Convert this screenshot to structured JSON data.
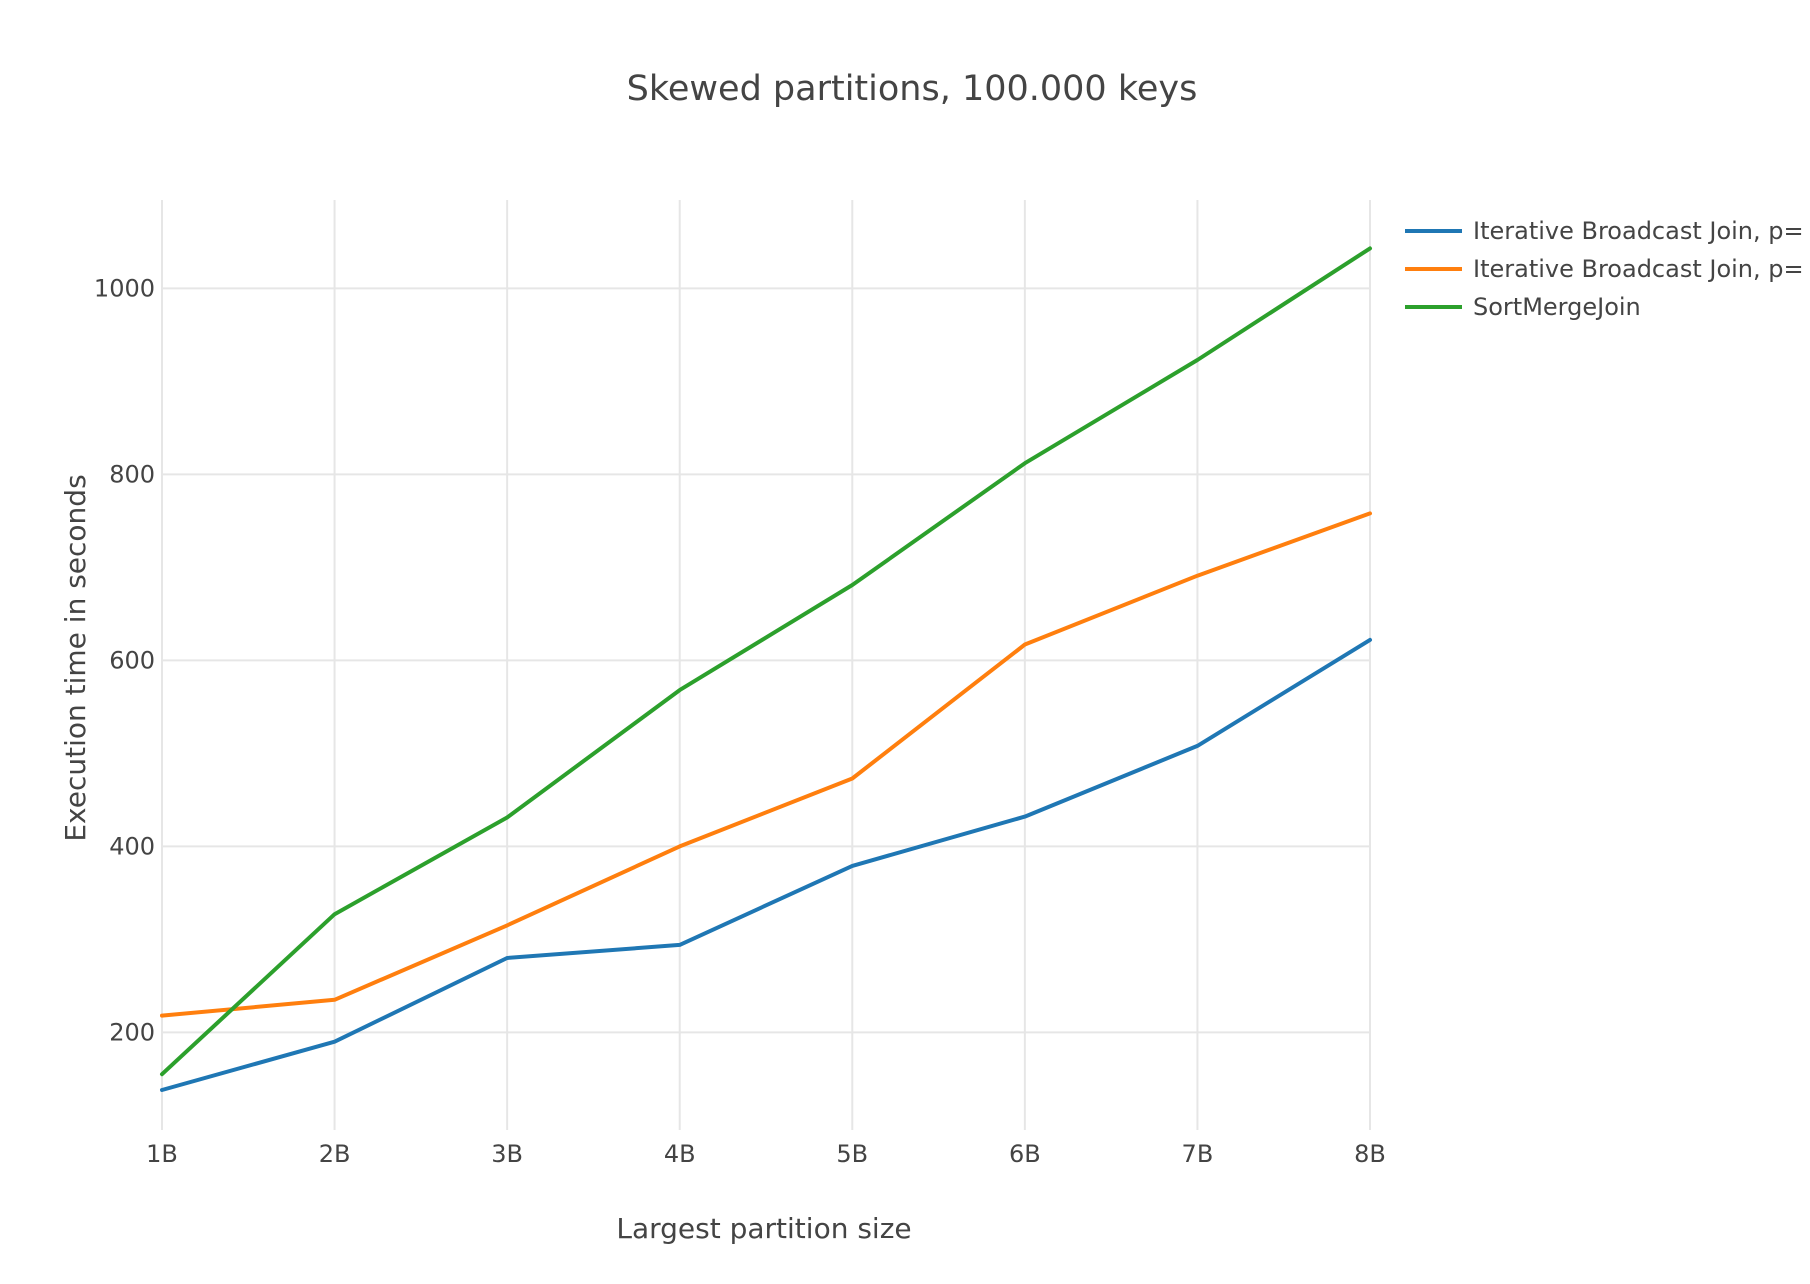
{
  "chart_data": {
    "type": "line",
    "title": "Skewed partitions, 100.000 keys",
    "xlabel": "Largest partition size",
    "ylabel": "Execution time in seconds",
    "categories": [
      "1B",
      "2B",
      "3B",
      "4B",
      "5B",
      "6B",
      "7B",
      "8B"
    ],
    "ylim": [
      95,
      1095
    ],
    "yticks": [
      200,
      400,
      600,
      800,
      1000
    ],
    "grid": true,
    "legend_position": "top-right",
    "series": [
      {
        "name": "Iterative Broadcast Join, p=",
        "color": "#1f77b4",
        "values": [
          138,
          190,
          280,
          294,
          379,
          432,
          508,
          622
        ]
      },
      {
        "name": "Iterative Broadcast Join, p=",
        "color": "#ff7f0e",
        "values": [
          218,
          235,
          315,
          400,
          473,
          617,
          691,
          758
        ]
      },
      {
        "name": "SortMergeJoin",
        "color": "#2ca02c",
        "values": [
          155,
          327,
          431,
          568,
          681,
          812,
          923,
          1043
        ]
      }
    ]
  }
}
